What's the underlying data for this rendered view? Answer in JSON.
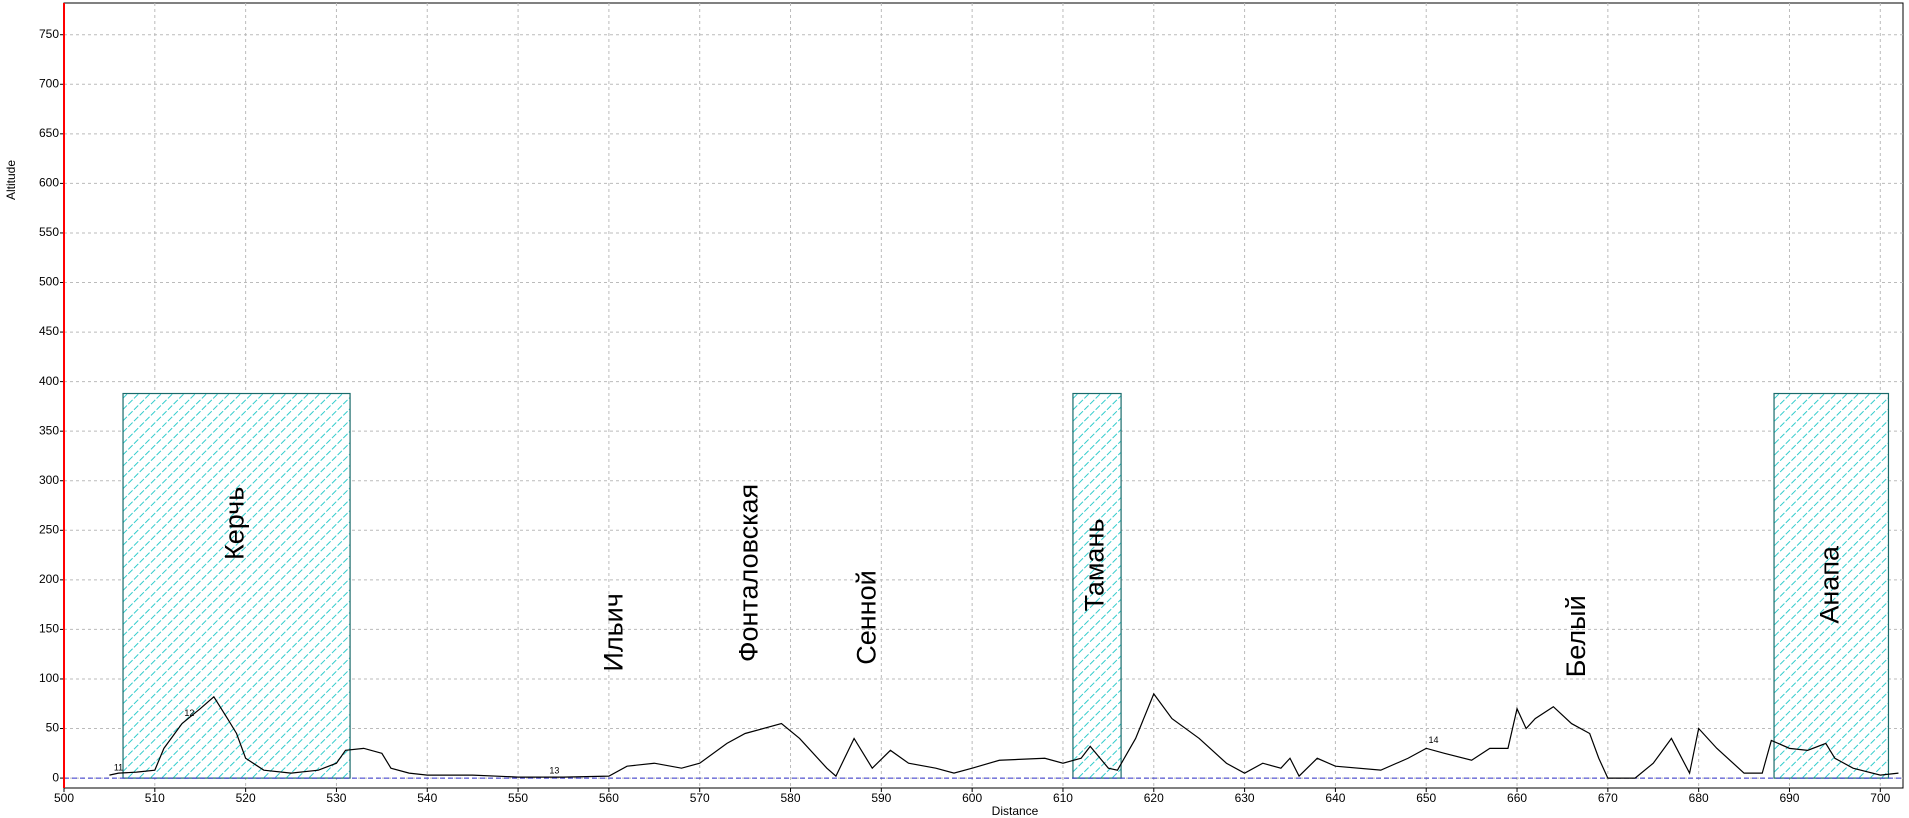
{
  "chart_data": {
    "type": "line",
    "x_label": "Distance",
    "y_label": "Altitude",
    "xlim": [
      500,
      702.5
    ],
    "ylim": [
      -10,
      782
    ],
    "xticks": [
      500,
      510,
      520,
      530,
      540,
      550,
      560,
      570,
      580,
      590,
      600,
      610,
      620,
      630,
      640,
      650,
      660,
      670,
      680,
      690,
      700
    ],
    "yticks": [
      0,
      50,
      100,
      150,
      200,
      250,
      300,
      350,
      400,
      450,
      500,
      550,
      600,
      650,
      700,
      750
    ],
    "grid": true,
    "series": [
      {
        "color": "#000000",
        "x": [
          505,
          506,
          508,
          510,
          511,
          513,
          515,
          516.5,
          518,
          519,
          520,
          522,
          525,
          528,
          530,
          531,
          533,
          535,
          536,
          538,
          540,
          545,
          550,
          555,
          560,
          562,
          565,
          568,
          570,
          573,
          575,
          579,
          581,
          584,
          585,
          587,
          588,
          589,
          591,
          593,
          596,
          598,
          600,
          603,
          608,
          610,
          612,
          613,
          615,
          616,
          618,
          620,
          622,
          625,
          628,
          630,
          632,
          634,
          635,
          636,
          638,
          640,
          645,
          648,
          650,
          652,
          655,
          657,
          659,
          660,
          661,
          662,
          664,
          666,
          668,
          669,
          670,
          673,
          675,
          677,
          679,
          680,
          682,
          685,
          687,
          688,
          690,
          692,
          694,
          695,
          697,
          700,
          702
        ],
        "values": [
          3,
          5,
          6,
          8,
          30,
          55,
          70,
          82,
          60,
          45,
          20,
          8,
          5,
          8,
          15,
          28,
          30,
          25,
          10,
          5,
          3,
          3,
          1,
          1,
          2,
          12,
          15,
          10,
          15,
          35,
          45,
          55,
          40,
          10,
          2,
          40,
          25,
          10,
          28,
          15,
          10,
          5,
          10,
          18,
          20,
          15,
          20,
          32,
          10,
          8,
          40,
          85,
          60,
          40,
          15,
          5,
          15,
          10,
          20,
          2,
          20,
          12,
          8,
          20,
          30,
          25,
          18,
          30,
          30,
          70,
          50,
          60,
          72,
          55,
          45,
          20,
          0,
          0,
          15,
          40,
          5,
          50,
          30,
          5,
          5,
          38,
          30,
          28,
          35,
          20,
          10,
          3,
          5
        ]
      }
    ],
    "zone_top": 388,
    "zone_color": "#33cccc",
    "places": [
      {
        "name": "Керчь",
        "x": 519,
        "y": 257,
        "zone": [
          506.5,
          531.5
        ]
      },
      {
        "name": "Ильич",
        "x": 560.7,
        "y": 147
      },
      {
        "name": "Фонталовская",
        "x": 575.6,
        "y": 207
      },
      {
        "name": "Сенной",
        "x": 588.6,
        "y": 162
      },
      {
        "name": "Тамань",
        "x": 613.7,
        "y": 215,
        "zone": [
          611.1,
          616.4
        ]
      },
      {
        "name": "Белый",
        "x": 666.7,
        "y": 143
      },
      {
        "name": "Анапа",
        "x": 694.6,
        "y": 195,
        "zone": [
          688.3,
          700.9
        ]
      }
    ],
    "point_labels": [
      {
        "label": "11",
        "x": 506,
        "y": 10
      },
      {
        "label": "12",
        "x": 513.8,
        "y": 65
      },
      {
        "label": "13",
        "x": 554,
        "y": 7
      },
      {
        "label": "14",
        "x": 650.8,
        "y": 38
      }
    ]
  }
}
